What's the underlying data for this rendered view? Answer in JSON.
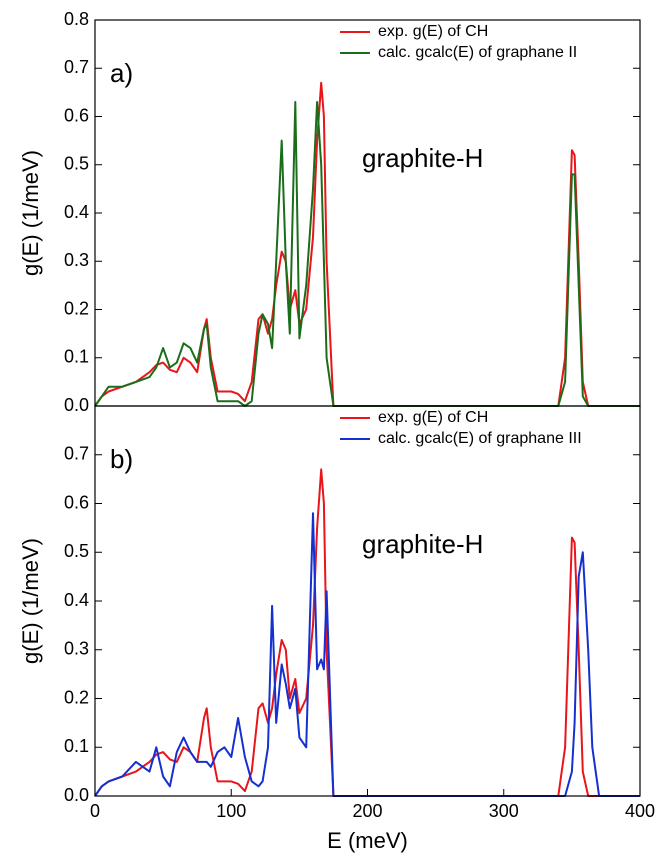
{
  "chart_data": [
    {
      "type": "line",
      "title": "a)",
      "annotation": "graphite-H",
      "ylabel": "g(E) (1/meV)",
      "xlim": [
        0,
        400
      ],
      "ylim": [
        0,
        0.8
      ],
      "yticks": [
        {
          "value": 0,
          "label": "0.0"
        },
        0.1,
        0.2,
        0.3,
        0.4,
        0.5,
        0.6,
        0.7,
        0.8
      ],
      "x": [
        0,
        5,
        10,
        20,
        30,
        40,
        45,
        50,
        55,
        60,
        65,
        70,
        75,
        80,
        82,
        85,
        90,
        95,
        100,
        105,
        110,
        115,
        120,
        123,
        127,
        130,
        133,
        137,
        140,
        143,
        147,
        150,
        155,
        160,
        163,
        166,
        168,
        170,
        175,
        180,
        200,
        300,
        340,
        345,
        350,
        352,
        355,
        358,
        362,
        365,
        370,
        400
      ],
      "series": [
        {
          "name": "exp. g(E) of CH",
          "color": "#e8151b",
          "values": [
            0,
            0.02,
            0.03,
            0.04,
            0.05,
            0.07,
            0.085,
            0.09,
            0.075,
            0.07,
            0.1,
            0.09,
            0.07,
            0.16,
            0.18,
            0.1,
            0.03,
            0.03,
            0.03,
            0.025,
            0.01,
            0.05,
            0.18,
            0.19,
            0.15,
            0.18,
            0.25,
            0.32,
            0.3,
            0.2,
            0.24,
            0.17,
            0.2,
            0.35,
            0.55,
            0.67,
            0.6,
            0.3,
            0,
            0,
            0,
            0,
            0,
            0.1,
            0.53,
            0.52,
            0.3,
            0.05,
            0,
            0,
            0,
            0
          ]
        },
        {
          "name": "calc. gcalc(E) of graphane II",
          "color": "#1a6e1a",
          "values": [
            0,
            0.02,
            0.04,
            0.04,
            0.05,
            0.06,
            0.08,
            0.12,
            0.08,
            0.09,
            0.13,
            0.12,
            0.09,
            0.16,
            0.17,
            0.08,
            0.01,
            0.01,
            0.01,
            0.01,
            0,
            0.01,
            0.15,
            0.19,
            0.17,
            0.12,
            0.3,
            0.55,
            0.3,
            0.15,
            0.63,
            0.14,
            0.25,
            0.45,
            0.63,
            0.5,
            0.3,
            0.1,
            0,
            0,
            0,
            0,
            0,
            0.05,
            0.48,
            0.48,
            0.25,
            0.02,
            0,
            0,
            0,
            0
          ]
        }
      ]
    },
    {
      "type": "line",
      "title": "b)",
      "annotation": "graphite-H",
      "ylabel": "g(E) (1/meV)",
      "xlabel": "E (meV)",
      "xlim": [
        0,
        400
      ],
      "ylim": [
        0,
        0.8
      ],
      "xticks": [
        0,
        100,
        200,
        300,
        400
      ],
      "yticks": [
        {
          "value": 0,
          "label": "0.0"
        },
        0.1,
        0.2,
        0.3,
        0.4,
        0.5,
        0.6,
        0.7
      ],
      "x": [
        0,
        5,
        10,
        20,
        30,
        40,
        45,
        50,
        55,
        60,
        65,
        70,
        75,
        80,
        82,
        85,
        90,
        95,
        100,
        105,
        110,
        115,
        120,
        123,
        127,
        130,
        133,
        137,
        140,
        143,
        147,
        150,
        155,
        160,
        163,
        166,
        168,
        170,
        175,
        180,
        200,
        300,
        340,
        345,
        350,
        352,
        355,
        358,
        362,
        365,
        370,
        400
      ],
      "series": [
        {
          "name": "exp. g(E) of CH",
          "color": "#e8151b",
          "values": [
            0,
            0.02,
            0.03,
            0.04,
            0.05,
            0.07,
            0.085,
            0.09,
            0.075,
            0.07,
            0.1,
            0.09,
            0.07,
            0.16,
            0.18,
            0.1,
            0.03,
            0.03,
            0.03,
            0.025,
            0.01,
            0.05,
            0.18,
            0.19,
            0.15,
            0.18,
            0.25,
            0.32,
            0.3,
            0.2,
            0.24,
            0.17,
            0.2,
            0.35,
            0.55,
            0.67,
            0.6,
            0.3,
            0,
            0,
            0,
            0,
            0,
            0.1,
            0.53,
            0.52,
            0.3,
            0.05,
            0,
            0,
            0,
            0
          ]
        },
        {
          "name": "calc. gcalc(E) of graphane III",
          "color": "#1530d0",
          "values": [
            0,
            0.02,
            0.03,
            0.04,
            0.07,
            0.05,
            0.1,
            0.04,
            0.02,
            0.09,
            0.12,
            0.09,
            0.07,
            0.07,
            0.07,
            0.06,
            0.09,
            0.1,
            0.08,
            0.16,
            0.08,
            0.03,
            0.02,
            0.03,
            0.1,
            0.39,
            0.15,
            0.27,
            0.23,
            0.18,
            0.22,
            0.12,
            0.1,
            0.58,
            0.26,
            0.28,
            0.26,
            0.42,
            0,
            0,
            0,
            0,
            0,
            0,
            0.05,
            0.15,
            0.45,
            0.5,
            0.3,
            0.1,
            0,
            0
          ]
        }
      ]
    }
  ]
}
